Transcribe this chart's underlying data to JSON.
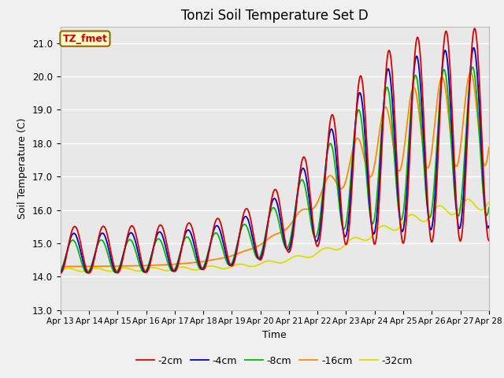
{
  "title": "Tonzi Soil Temperature Set D",
  "xlabel": "Time",
  "ylabel": "Soil Temperature (C)",
  "ylim": [
    13.0,
    21.5
  ],
  "annotation_label": "TZ_fmet",
  "annotation_color": "#cc0000",
  "annotation_bg": "#ffffcc",
  "annotation_border": "#996600",
  "tick_labels": [
    "Apr 13",
    "Apr 14",
    "Apr 15",
    "Apr 16",
    "Apr 17",
    "Apr 18",
    "Apr 19",
    "Apr 20",
    "Apr 21",
    "Apr 22",
    "Apr 23",
    "Apr 24",
    "Apr 25",
    "Apr 26",
    "Apr 27",
    "Apr 28"
  ],
  "legend_labels": [
    "-2cm",
    "-4cm",
    "-8cm",
    "-16cm",
    "-32cm"
  ],
  "line_colors": [
    "#dd0000",
    "#0000cc",
    "#00bb00",
    "#ff8800",
    "#dddd00"
  ],
  "background_color": "#e8e8e8",
  "grid_color": "#ffffff",
  "title_fontsize": 12
}
